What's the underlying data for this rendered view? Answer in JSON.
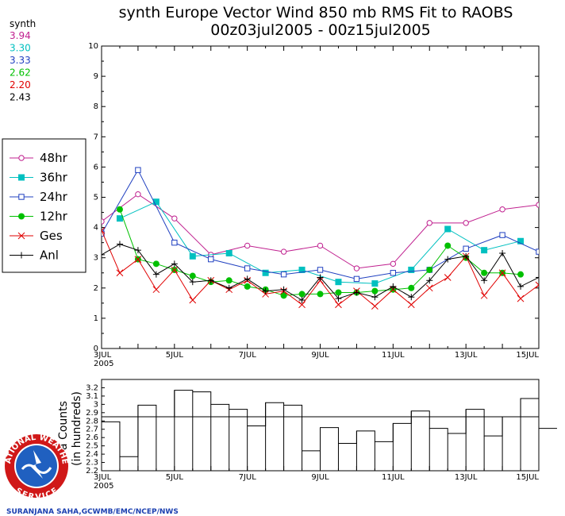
{
  "chart_data": [
    {
      "type": "line",
      "title": "synth Europe Vector Wind 850 mb RMS Fit to RAOBS",
      "subtitle": "00z03jul2005 - 00z15jul2005",
      "xlim": [
        0,
        24
      ],
      "ylim": [
        0,
        10
      ],
      "yticks": [
        "0",
        "1",
        "2",
        "3",
        "4",
        "5",
        "6",
        "7",
        "8",
        "9",
        "10"
      ],
      "xticks": [
        {
          "pos": 0,
          "label": "3JUL",
          "sub": "2005"
        },
        {
          "pos": 4,
          "label": "5JUL"
        },
        {
          "pos": 8,
          "label": "7JUL"
        },
        {
          "pos": 12,
          "label": "9JUL"
        },
        {
          "pos": 16,
          "label": "11JUL"
        },
        {
          "pos": 20,
          "label": "13JUL"
        },
        {
          "pos": 24,
          "label": "15JUL"
        }
      ],
      "stats_header": "synth",
      "series": [
        {
          "name": "48hr",
          "color": "#c0208f",
          "marker": "open-circle",
          "mean": "3.94",
          "x": [
            0,
            2,
            4,
            6,
            8,
            10,
            12,
            14,
            16,
            18,
            20,
            22,
            24
          ],
          "y": [
            4.2,
            5.1,
            4.3,
            3.1,
            3.4,
            3.2,
            3.4,
            2.65,
            2.8,
            4.15,
            4.15,
            4.6,
            4.75
          ]
        },
        {
          "name": "36hr",
          "color": "#00c0c0",
          "marker": "filled-square",
          "mean": "3.30",
          "x": [
            1,
            3,
            5,
            7,
            9,
            11,
            13,
            15,
            17,
            19,
            21,
            23
          ],
          "y": [
            4.3,
            4.85,
            3.05,
            3.15,
            2.5,
            2.6,
            2.2,
            2.15,
            2.6,
            3.95,
            3.25,
            3.55
          ]
        },
        {
          "name": "24hr",
          "color": "#2040c0",
          "marker": "open-square",
          "mean": "3.33",
          "x": [
            0,
            2,
            4,
            6,
            8,
            10,
            12,
            14,
            16,
            18,
            20,
            22,
            24
          ],
          "y": [
            3.8,
            5.9,
            3.5,
            2.95,
            2.65,
            2.45,
            2.6,
            2.3,
            2.5,
            2.6,
            3.3,
            3.75,
            3.2
          ]
        },
        {
          "name": "12hr",
          "color": "#00c000",
          "marker": "filled-circle",
          "mean": "2.62",
          "x": [
            1,
            2,
            3,
            4,
            5,
            6,
            7,
            8,
            9,
            10,
            11,
            12,
            13,
            14,
            15,
            16,
            17,
            18,
            19,
            20,
            21,
            22,
            23
          ],
          "y": [
            4.6,
            2.95,
            2.8,
            2.6,
            2.4,
            2.2,
            2.25,
            2.05,
            1.95,
            1.75,
            1.8,
            1.8,
            1.85,
            1.85,
            1.9,
            1.95,
            2.0,
            2.6,
            3.4,
            3.0,
            2.5,
            2.5,
            2.45
          ]
        },
        {
          "name": "Ges",
          "color": "#e00000",
          "marker": "x",
          "mean": "2.20",
          "x": [
            0,
            1,
            2,
            3,
            4,
            5,
            6,
            7,
            8,
            9,
            10,
            11,
            12,
            13,
            14,
            15,
            16,
            17,
            18,
            19,
            20,
            21,
            22,
            23,
            24
          ],
          "y": [
            3.9,
            2.5,
            2.95,
            1.95,
            2.6,
            1.6,
            2.25,
            1.95,
            2.25,
            1.8,
            1.9,
            1.45,
            2.25,
            1.45,
            1.9,
            1.4,
            1.95,
            1.45,
            2.0,
            2.35,
            3.05,
            1.75,
            2.5,
            1.65,
            2.1
          ]
        },
        {
          "name": "Anl",
          "color": "#000000",
          "marker": "plus",
          "mean": "2.43",
          "x": [
            0,
            1,
            2,
            3,
            4,
            5,
            6,
            7,
            8,
            9,
            10,
            11,
            12,
            13,
            14,
            15,
            16,
            17,
            18,
            19,
            20,
            21,
            22,
            23,
            24
          ],
          "y": [
            3.1,
            3.45,
            3.25,
            2.45,
            2.8,
            2.2,
            2.25,
            2.0,
            2.3,
            1.9,
            1.95,
            1.6,
            2.35,
            1.65,
            1.85,
            1.7,
            2.05,
            1.7,
            2.25,
            2.95,
            3.05,
            2.25,
            3.15,
            2.05,
            2.35
          ]
        }
      ]
    },
    {
      "type": "step",
      "ylabel": "Data Counts",
      "ylabel_visible": "a Counts",
      "ylabel2": "(in hundreds)",
      "xlim": [
        0,
        24
      ],
      "ylim": [
        2.2,
        3.3
      ],
      "yticks": [
        "2.2",
        "2.3",
        "2.4",
        "2.5",
        "2.6",
        "2.7",
        "2.8",
        "2.9",
        "3",
        "3.1",
        "3.2"
      ],
      "mean": 2.85,
      "xticks": [
        {
          "pos": 0,
          "label": "3JUL",
          "sub": "2005"
        },
        {
          "pos": 4,
          "label": "5JUL"
        },
        {
          "pos": 8,
          "label": "7JUL"
        },
        {
          "pos": 12,
          "label": "9JUL"
        },
        {
          "pos": 16,
          "label": "11JUL"
        },
        {
          "pos": 20,
          "label": "13JUL"
        },
        {
          "pos": 24,
          "label": "15JUL"
        }
      ],
      "values": [
        2.79,
        2.37,
        2.99,
        2.85,
        3.17,
        3.15,
        3.0,
        2.94,
        2.74,
        3.02,
        2.99,
        2.44,
        2.72,
        2.53,
        2.68,
        2.55,
        2.77,
        2.92,
        2.71,
        2.65,
        2.94,
        2.62,
        2.85,
        3.07,
        2.71
      ]
    }
  ],
  "credit": "SURANJANA SAHA,GCWMB/EMC/NCEP/NWS",
  "logo": {
    "top_text": "NATIONAL WEATHER",
    "bottom_text": "SERVICE",
    "colors": {
      "ring_red": "#d01818",
      "inner_blue": "#2060c0",
      "ring_white": "#ffffff"
    }
  }
}
